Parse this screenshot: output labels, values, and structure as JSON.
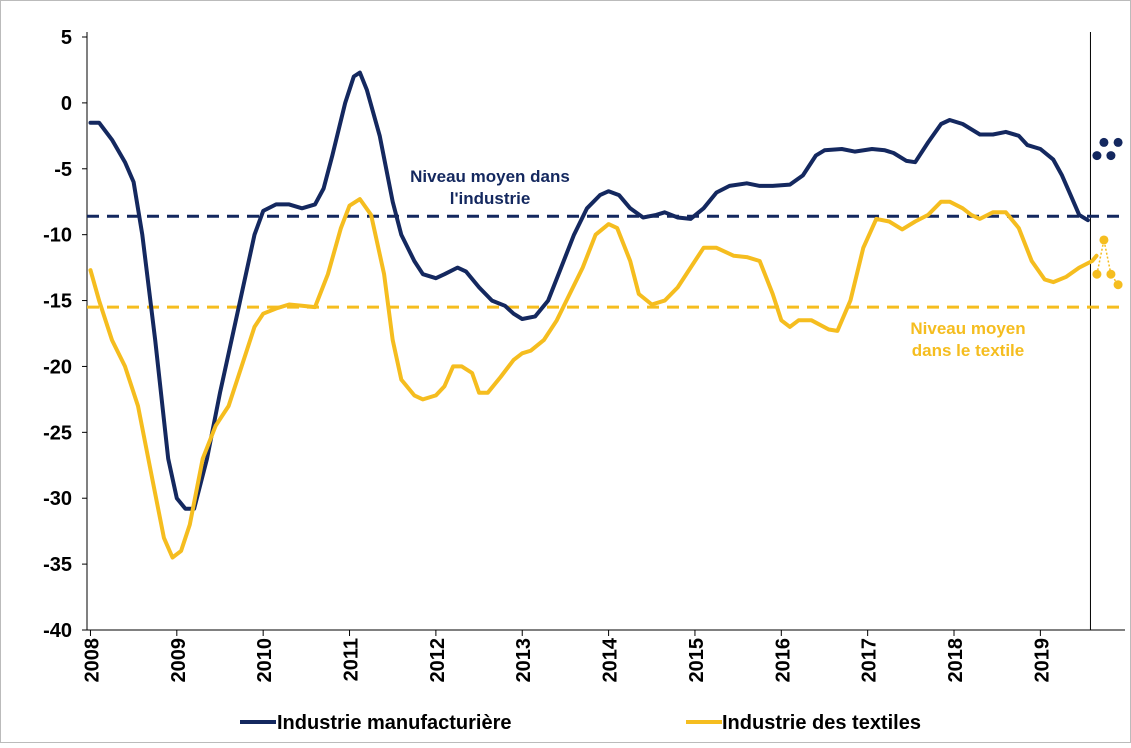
{
  "chart_data": {
    "type": "line",
    "xlim": [
      2007.96,
      2019.98
    ],
    "ylim": [
      -40,
      5
    ],
    "xticks": [
      2008,
      2009,
      2010,
      2011,
      2012,
      2013,
      2014,
      2015,
      2016,
      2017,
      2018,
      2019
    ],
    "yticks": [
      5,
      0,
      -5,
      -10,
      -15,
      -20,
      -25,
      -30,
      -35,
      -40
    ],
    "vline": 2019.58,
    "series": [
      {
        "name": "Industrie manufacturière",
        "color": "#14285f",
        "x": [
          2008.0,
          2008.1,
          2008.25,
          2008.4,
          2008.5,
          2008.6,
          2008.75,
          2008.9,
          2009.0,
          2009.1,
          2009.2,
          2009.35,
          2009.5,
          2009.7,
          2009.9,
          2010.0,
          2010.15,
          2010.3,
          2010.45,
          2010.6,
          2010.7,
          2010.8,
          2010.95,
          2011.05,
          2011.12,
          2011.2,
          2011.35,
          2011.5,
          2011.6,
          2011.75,
          2011.85,
          2012.0,
          2012.1,
          2012.25,
          2012.35,
          2012.5,
          2012.65,
          2012.8,
          2012.9,
          2013.0,
          2013.15,
          2013.3,
          2013.45,
          2013.6,
          2013.75,
          2013.9,
          2014.0,
          2014.12,
          2014.25,
          2014.4,
          2014.55,
          2014.65,
          2014.8,
          2014.95,
          2015.1,
          2015.25,
          2015.4,
          2015.6,
          2015.75,
          2015.9,
          2016.1,
          2016.25,
          2016.4,
          2016.5,
          2016.7,
          2016.85,
          2017.05,
          2017.2,
          2017.3,
          2017.45,
          2017.55,
          2017.7,
          2017.85,
          2017.95,
          2018.1,
          2018.3,
          2018.45,
          2018.6,
          2018.75,
          2018.85,
          2019.0,
          2019.15,
          2019.25,
          2019.35,
          2019.45,
          2019.55
        ],
        "values": [
          -1.5,
          -1.5,
          -2.8,
          -4.5,
          -6,
          -10,
          -18,
          -27,
          -30,
          -30.8,
          -30.8,
          -27,
          -22,
          -16,
          -10,
          -8.2,
          -7.7,
          -7.7,
          -8,
          -7.7,
          -6.5,
          -4,
          0,
          2,
          2.3,
          1,
          -2.5,
          -7.5,
          -10,
          -12,
          -13,
          -13.3,
          -13,
          -12.5,
          -12.8,
          -14,
          -15,
          -15.4,
          -16,
          -16.4,
          -16.2,
          -15,
          -12.5,
          -10,
          -8,
          -7,
          -6.7,
          -7,
          -8,
          -8.7,
          -8.5,
          -8.3,
          -8.7,
          -8.8,
          -8,
          -6.8,
          -6.3,
          -6.1,
          -6.3,
          -6.3,
          -6.2,
          -5.5,
          -4,
          -3.6,
          -3.5,
          -3.7,
          -3.5,
          -3.6,
          -3.8,
          -4.4,
          -4.5,
          -3,
          -1.6,
          -1.3,
          -1.6,
          -2.4,
          -2.4,
          -2.2,
          -2.5,
          -3.2,
          -3.5,
          -4.3,
          -5.5,
          -7,
          -8.5,
          -8.9
        ]
      },
      {
        "name": "Industrie des textiles",
        "color": "#f5bd1f",
        "x": [
          2008.0,
          2008.1,
          2008.25,
          2008.4,
          2008.55,
          2008.7,
          2008.85,
          2008.95,
          2009.05,
          2009.15,
          2009.3,
          2009.45,
          2009.6,
          2009.75,
          2009.9,
          2010.0,
          2010.15,
          2010.3,
          2010.45,
          2010.6,
          2010.75,
          2010.9,
          2011.0,
          2011.12,
          2011.25,
          2011.4,
          2011.5,
          2011.6,
          2011.75,
          2011.85,
          2012.0,
          2012.1,
          2012.2,
          2012.3,
          2012.42,
          2012.5,
          2012.6,
          2012.75,
          2012.9,
          2013.0,
          2013.1,
          2013.25,
          2013.4,
          2013.55,
          2013.7,
          2013.85,
          2014.0,
          2014.1,
          2014.25,
          2014.35,
          2014.5,
          2014.65,
          2014.8,
          2014.95,
          2015.1,
          2015.25,
          2015.45,
          2015.6,
          2015.75,
          2015.9,
          2016.0,
          2016.1,
          2016.2,
          2016.35,
          2016.55,
          2016.65,
          2016.8,
          2016.95,
          2017.1,
          2017.25,
          2017.4,
          2017.55,
          2017.7,
          2017.85,
          2017.95,
          2018.1,
          2018.2,
          2018.3,
          2018.45,
          2018.6,
          2018.75,
          2018.9,
          2019.05,
          2019.15,
          2019.3,
          2019.45,
          2019.6,
          2019.65
        ],
        "values": [
          -12.7,
          -15,
          -18,
          -20,
          -23,
          -28,
          -33,
          -34.5,
          -34,
          -32,
          -27,
          -24.5,
          -23,
          -20,
          -17,
          -16,
          -15.6,
          -15.3,
          -15.4,
          -15.5,
          -13,
          -9.5,
          -7.8,
          -7.3,
          -8.5,
          -13,
          -18,
          -21,
          -22.2,
          -22.5,
          -22.2,
          -21.5,
          -20,
          -20,
          -20.5,
          -22,
          -22,
          -20.8,
          -19.5,
          -19,
          -18.8,
          -18,
          -16.5,
          -14.5,
          -12.5,
          -10,
          -9.2,
          -9.5,
          -12,
          -14.5,
          -15.3,
          -15,
          -14,
          -12.5,
          -11,
          -11,
          -11.6,
          -11.7,
          -12,
          -14.5,
          -16.5,
          -17,
          -16.5,
          -16.5,
          -17.2,
          -17.3,
          -15,
          -11,
          -8.8,
          -9,
          -9.6,
          -9,
          -8.5,
          -7.5,
          -7.5,
          -8,
          -8.5,
          -8.8,
          -8.3,
          -8.3,
          -9.5,
          -12,
          -13.4,
          -13.6,
          -13.2,
          -12.5,
          -12,
          -11.6
        ]
      }
    ],
    "reference_lines": [
      {
        "value": -8.6,
        "color": "#14285f",
        "label": "Niveau moyen dans l'industrie"
      },
      {
        "value": -15.5,
        "color": "#f5bd1f",
        "label": "Niveau moyen dans le textile"
      }
    ],
    "projections": [
      {
        "color": "#14285f",
        "connect": false,
        "x": [
          2019.655,
          2019.736,
          2019.817,
          2019.9
        ],
        "values": [
          -4,
          -3,
          -4,
          -3
        ]
      },
      {
        "color": "#f5bd1f",
        "connect": true,
        "x": [
          2019.655,
          2019.736,
          2019.817,
          2019.9
        ],
        "values": [
          -13,
          -10.4,
          -13,
          -13.8
        ]
      }
    ]
  }
}
